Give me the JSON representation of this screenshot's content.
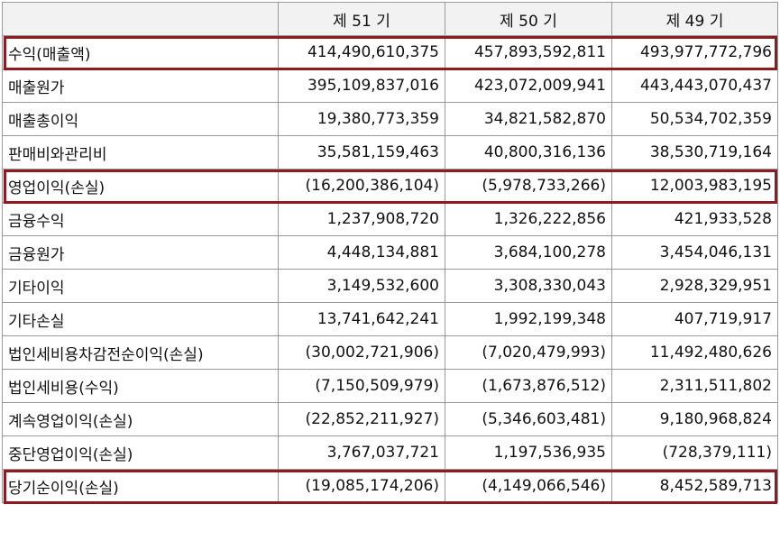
{
  "header": {
    "corner": "",
    "periods": [
      "제 51 기",
      "제 50 기",
      "제 49 기"
    ]
  },
  "rows": [
    {
      "label": "수익(매출액)",
      "values": [
        "414,490,610,375",
        "457,893,592,811",
        "493,977,772,796"
      ],
      "highlighted": true
    },
    {
      "label": "매출원가",
      "values": [
        "395,109,837,016",
        "423,072,009,941",
        "443,443,070,437"
      ],
      "highlighted": false
    },
    {
      "label": "매출총이익",
      "values": [
        "19,380,773,359",
        "34,821,582,870",
        "50,534,702,359"
      ],
      "highlighted": false
    },
    {
      "label": "판매비와관리비",
      "values": [
        "35,581,159,463",
        "40,800,316,136",
        "38,530,719,164"
      ],
      "highlighted": false
    },
    {
      "label": "영업이익(손실)",
      "values": [
        "(16,200,386,104)",
        "(5,978,733,266)",
        "12,003,983,195"
      ],
      "highlighted": true
    },
    {
      "label": "금융수익",
      "values": [
        "1,237,908,720",
        "1,326,222,856",
        "421,933,528"
      ],
      "highlighted": false
    },
    {
      "label": "금융원가",
      "values": [
        "4,448,134,881",
        "3,684,100,278",
        "3,454,046,131"
      ],
      "highlighted": false
    },
    {
      "label": "기타이익",
      "values": [
        "3,149,532,600",
        "3,308,330,043",
        "2,928,329,951"
      ],
      "highlighted": false
    },
    {
      "label": "기타손실",
      "values": [
        "13,741,642,241",
        "1,992,199,348",
        "407,719,917"
      ],
      "highlighted": false
    },
    {
      "label": "법인세비용차감전순이익(손실)",
      "values": [
        "(30,002,721,906)",
        "(7,020,479,993)",
        "11,492,480,626"
      ],
      "highlighted": false
    },
    {
      "label": "법인세비용(수익)",
      "values": [
        "(7,150,509,979)",
        "(1,673,876,512)",
        "2,311,511,802"
      ],
      "highlighted": false
    },
    {
      "label": "계속영업이익(손실)",
      "values": [
        "(22,852,211,927)",
        "(5,346,603,481)",
        "9,180,968,824"
      ],
      "highlighted": false
    },
    {
      "label": "중단영업이익(손실)",
      "values": [
        "3,767,037,721",
        "1,197,536,935",
        "(728,379,111)"
      ],
      "highlighted": false
    },
    {
      "label": "당기순이익(손실)",
      "values": [
        "(19,085,174,206)",
        "(4,149,066,546)",
        "8,452,589,713"
      ],
      "highlighted": true
    }
  ],
  "colors": {
    "highlight_border": "#8f1b22",
    "grid": "#9a9a9a",
    "header_bg": "#f2f2f2"
  }
}
